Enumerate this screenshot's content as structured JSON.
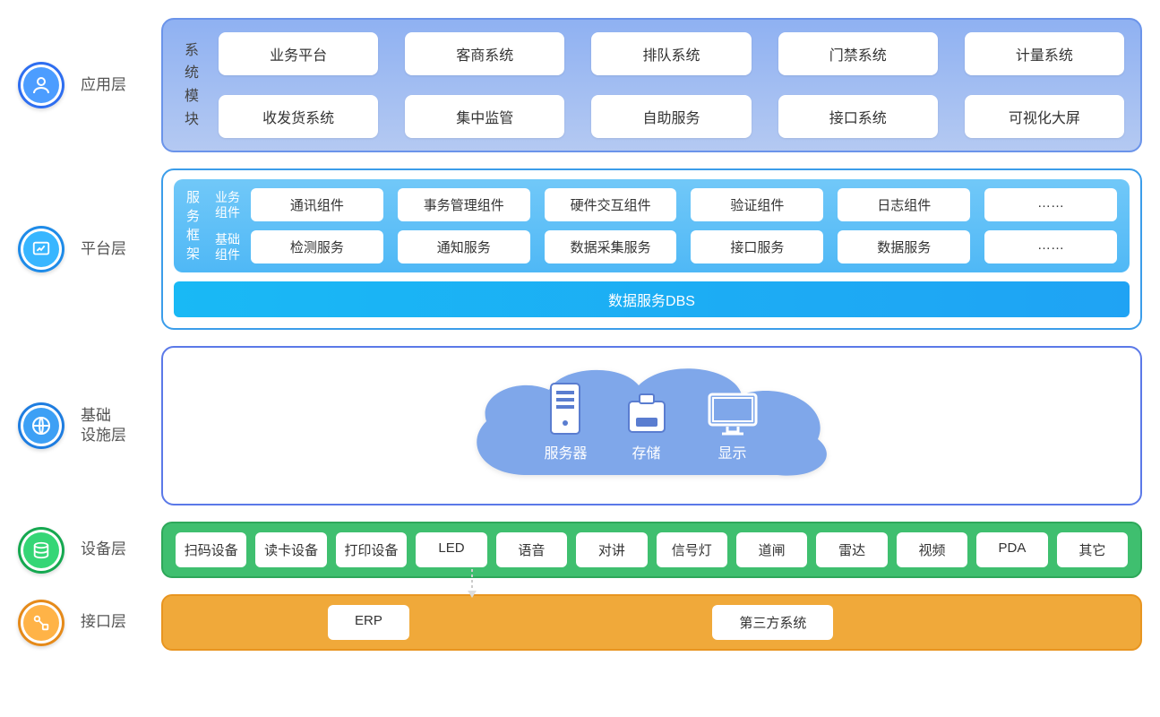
{
  "layers": {
    "app": {
      "title": "应用层",
      "icon_outer": "#2e6ef0",
      "icon_inner": "#4c9dff",
      "section_label": "系统模块",
      "row1": [
        "业务平台",
        "客商系统",
        "排队系统",
        "门禁系统",
        "计量系统"
      ],
      "row2": [
        "收发货系统",
        "集中监管",
        "自助服务",
        "接口系统",
        "可视化大屏"
      ]
    },
    "plat": {
      "title": "平台层",
      "icon_outer": "#1e8be8",
      "icon_inner": "#38b6ff",
      "section_label": "服务框架",
      "sub1_label": "业务组件",
      "sub1": [
        "通讯组件",
        "事务管理组件",
        "硬件交互组件",
        "验证组件",
        "日志组件",
        "……"
      ],
      "sub2_label": "基础组件",
      "sub2": [
        "检测服务",
        "通知服务",
        "数据采集服务",
        "接口服务",
        "数据服务",
        "……"
      ],
      "banner": "数据服务DBS"
    },
    "infra": {
      "title": "基础\n设施层",
      "icon_outer": "#1e7de0",
      "icon_inner": "#3da0f5",
      "cloud_color": "#7fa7ea",
      "items": [
        {
          "label": "服务器",
          "icon": "server"
        },
        {
          "label": "存储",
          "icon": "storage"
        },
        {
          "label": "显示",
          "icon": "display"
        }
      ]
    },
    "dev": {
      "title": "设备层",
      "icon_outer": "#15a850",
      "icon_inner": "#35d676",
      "items": [
        "扫码设备",
        "读卡设备",
        "打印设备",
        "LED",
        "语音",
        "对讲",
        "信号灯",
        "道闸",
        "雷达",
        "视频",
        "PDA",
        "其它"
      ]
    },
    "intf": {
      "title": "接口层",
      "icon_outer": "#e58a1a",
      "icon_inner": "#ffb347",
      "items": [
        "ERP",
        "第三方系统"
      ]
    }
  },
  "colors": {
    "text": "#555555"
  }
}
